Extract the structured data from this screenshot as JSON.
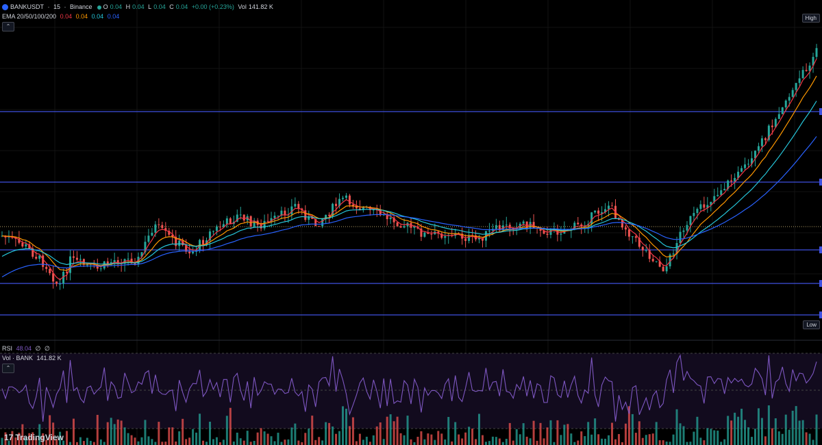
{
  "header": {
    "symbol": "BANKUSDT",
    "interval": "15",
    "exchange": "Binance",
    "title_sep": " · ",
    "ohlc": {
      "o_label": "O",
      "o": "0.04",
      "h_label": "H",
      "h": "0.04",
      "l_label": "L",
      "l": "0.04",
      "c_label": "C",
      "c": "0.04",
      "change": "+0.00 (+0.23%)",
      "vol_label": "Vol",
      "vol": "141.82 K"
    }
  },
  "ema": {
    "label": "EMA 20/50/100/200",
    "values": [
      "0.04",
      "0.04",
      "0.04",
      "0.04"
    ],
    "colors": [
      "#f23645",
      "#ff9800",
      "#26c6da",
      "#2962ff"
    ]
  },
  "rsi": {
    "label": "RSI",
    "value": "48.04",
    "extra1": "∅",
    "extra2": "∅",
    "color": "#7e57c2"
  },
  "volume": {
    "label": "Vol · BANK",
    "value": "141.82 K"
  },
  "badges": {
    "high": "High",
    "low": "Low"
  },
  "collapse_glyph": "⌃",
  "brand": {
    "mark": "17",
    "name": "TradingView"
  },
  "colors": {
    "up": "#26a69a",
    "down": "#ef5350",
    "hline": "#3f51e0",
    "bg": "#000000",
    "rsi": "#7e57c2"
  },
  "chart_data": {
    "type": "line",
    "price_levels": [
      0.0,
      1.0,
      2.0,
      3.0,
      4.0,
      5.0
    ],
    "close_series": [
      52,
      50,
      48,
      46,
      47,
      45,
      43,
      41,
      40,
      42,
      44,
      46,
      48,
      50,
      52,
      54,
      55,
      56,
      57,
      56,
      55,
      54,
      52,
      50,
      47,
      44,
      41,
      38,
      35,
      33,
      31,
      30,
      32,
      35,
      38,
      40,
      42,
      44,
      45,
      46,
      47,
      48,
      47,
      46,
      45,
      44,
      43,
      44,
      45,
      47,
      49,
      51,
      52,
      53,
      52,
      51,
      50,
      48,
      46,
      45,
      44,
      43,
      45,
      47,
      49,
      50,
      48,
      47,
      46,
      45,
      44,
      46,
      48,
      50,
      52,
      55,
      58,
      61,
      63,
      62,
      60,
      58,
      57,
      56,
      55,
      54,
      52,
      50,
      48,
      46,
      44,
      42,
      40,
      38,
      36,
      38,
      40,
      42,
      44,
      46,
      48,
      50,
      52,
      54,
      56,
      58,
      60,
      62,
      64,
      66,
      67,
      66,
      65,
      64,
      63,
      62,
      60,
      58,
      56,
      55,
      54,
      53,
      52,
      53,
      54,
      56,
      58,
      60,
      62,
      64,
      66,
      65,
      64,
      63,
      62,
      61,
      60,
      59,
      60,
      61,
      62,
      63,
      64,
      65,
      66,
      67,
      68,
      70,
      72,
      74,
      76,
      78,
      80,
      79,
      78,
      77,
      76,
      75,
      74,
      73,
      72,
      71,
      70,
      69,
      68,
      67,
      66,
      65,
      64,
      63,
      62,
      61,
      60,
      59,
      58,
      57,
      56,
      55,
      54,
      53,
      52,
      51,
      50,
      49,
      48,
      47,
      46,
      45,
      44,
      43,
      42,
      41,
      40,
      39,
      38,
      37,
      36,
      35,
      34,
      33,
      32,
      33,
      34,
      35,
      36,
      37,
      38,
      39,
      40,
      41,
      42,
      43,
      44,
      45,
      46,
      47,
      48,
      49,
      50,
      51,
      52,
      53,
      54,
      55,
      56,
      57,
      58,
      59,
      60,
      61,
      62,
      63,
      64,
      65,
      66,
      67,
      68,
      69,
      70,
      71,
      72,
      73,
      74,
      75,
      76,
      77,
      78,
      79,
      80,
      82,
      84,
      86,
      88,
      90,
      92,
      94,
      96,
      98,
      100
    ]
  }
}
